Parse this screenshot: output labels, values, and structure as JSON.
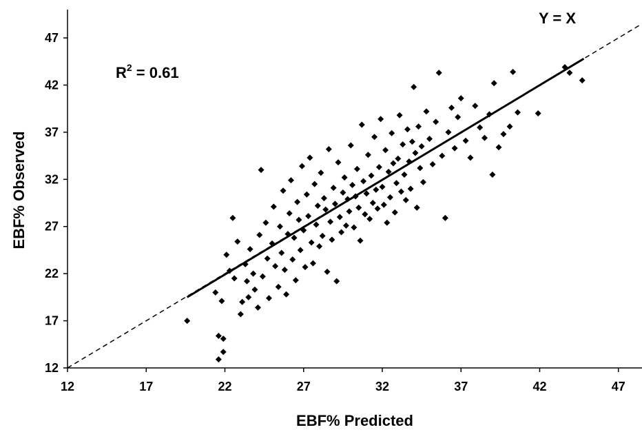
{
  "chart_data": {
    "type": "scatter",
    "xlabel": "EBF% Predicted",
    "ylabel": "EBF% Observed",
    "xlim": [
      12,
      48.5
    ],
    "ylim": [
      12,
      50
    ],
    "xticks": [
      12,
      17,
      22,
      27,
      32,
      37,
      42,
      47
    ],
    "yticks": [
      12,
      17,
      22,
      27,
      32,
      37,
      42,
      47
    ],
    "grid": false,
    "annotations": {
      "r2_base": "R",
      "r2_exp": "2",
      "r2_value": " = 0.61",
      "identity_label": "Y = X"
    },
    "identity_line": {
      "from": [
        12,
        12
      ],
      "to": [
        48.5,
        48.5
      ],
      "style": "dashed"
    },
    "regression_line": {
      "from": [
        19.6,
        19.5
      ],
      "to": [
        44.8,
        44.8
      ],
      "style": "solid"
    },
    "marker_color": "#000000",
    "points": [
      [
        19.6,
        17.0
      ],
      [
        21.6,
        15.4
      ],
      [
        21.9,
        15.1
      ],
      [
        21.6,
        12.9
      ],
      [
        21.9,
        13.7
      ],
      [
        21.4,
        20.0
      ],
      [
        21.8,
        19.1
      ],
      [
        22.1,
        24.0
      ],
      [
        22.3,
        22.3
      ],
      [
        22.5,
        27.9
      ],
      [
        22.6,
        21.5
      ],
      [
        22.8,
        25.4
      ],
      [
        23.0,
        17.7
      ],
      [
        23.1,
        19.0
      ],
      [
        23.3,
        23.0
      ],
      [
        23.4,
        21.2
      ],
      [
        23.5,
        19.5
      ],
      [
        23.6,
        24.6
      ],
      [
        23.8,
        22.0
      ],
      [
        23.9,
        20.3
      ],
      [
        24.1,
        18.4
      ],
      [
        24.2,
        26.1
      ],
      [
        24.3,
        33.0
      ],
      [
        24.4,
        21.7
      ],
      [
        24.6,
        27.4
      ],
      [
        24.7,
        23.6
      ],
      [
        24.8,
        19.4
      ],
      [
        25.0,
        25.2
      ],
      [
        25.1,
        29.1
      ],
      [
        25.2,
        22.8
      ],
      [
        25.4,
        20.6
      ],
      [
        25.5,
        27.0
      ],
      [
        25.6,
        24.2
      ],
      [
        25.7,
        30.8
      ],
      [
        25.8,
        22.4
      ],
      [
        25.9,
        19.8
      ],
      [
        26.0,
        26.2
      ],
      [
        26.1,
        28.4
      ],
      [
        26.2,
        31.9
      ],
      [
        26.3,
        23.5
      ],
      [
        26.4,
        25.8
      ],
      [
        26.5,
        21.3
      ],
      [
        26.6,
        29.6
      ],
      [
        26.7,
        27.7
      ],
      [
        26.8,
        24.5
      ],
      [
        26.9,
        33.4
      ],
      [
        27.0,
        26.6
      ],
      [
        27.1,
        22.7
      ],
      [
        27.2,
        30.4
      ],
      [
        27.3,
        28.1
      ],
      [
        27.4,
        34.3
      ],
      [
        27.5,
        25.3
      ],
      [
        27.6,
        23.1
      ],
      [
        27.7,
        31.5
      ],
      [
        27.8,
        27.2
      ],
      [
        27.9,
        29.2
      ],
      [
        28.0,
        24.9
      ],
      [
        28.1,
        32.7
      ],
      [
        28.2,
        26.0
      ],
      [
        28.3,
        30.0
      ],
      [
        28.4,
        28.8
      ],
      [
        28.5,
        22.2
      ],
      [
        28.6,
        35.2
      ],
      [
        28.7,
        27.5
      ],
      [
        28.8,
        25.6
      ],
      [
        28.9,
        31.1
      ],
      [
        29.0,
        29.4
      ],
      [
        29.1,
        21.2
      ],
      [
        29.2,
        33.8
      ],
      [
        29.3,
        28.0
      ],
      [
        29.4,
        26.4
      ],
      [
        29.5,
        30.6
      ],
      [
        29.6,
        32.2
      ],
      [
        29.7,
        27.1
      ],
      [
        29.8,
        29.9
      ],
      [
        29.9,
        28.6
      ],
      [
        30.0,
        35.6
      ],
      [
        30.1,
        31.4
      ],
      [
        30.2,
        26.9
      ],
      [
        30.3,
        30.2
      ],
      [
        30.4,
        33.1
      ],
      [
        30.5,
        29.0
      ],
      [
        30.6,
        25.5
      ],
      [
        30.7,
        37.8
      ],
      [
        30.8,
        31.8
      ],
      [
        30.9,
        28.3
      ],
      [
        31.0,
        30.5
      ],
      [
        31.1,
        34.6
      ],
      [
        31.2,
        27.8
      ],
      [
        31.3,
        32.4
      ],
      [
        31.4,
        29.5
      ],
      [
        31.5,
        36.5
      ],
      [
        31.6,
        30.9
      ],
      [
        31.7,
        28.9
      ],
      [
        31.8,
        33.3
      ],
      [
        31.9,
        38.4
      ],
      [
        32.0,
        31.2
      ],
      [
        32.1,
        29.3
      ],
      [
        32.2,
        35.1
      ],
      [
        32.3,
        27.4
      ],
      [
        32.4,
        32.8
      ],
      [
        32.5,
        30.1
      ],
      [
        32.6,
        36.9
      ],
      [
        32.7,
        33.7
      ],
      [
        32.8,
        28.5
      ],
      [
        32.9,
        31.6
      ],
      [
        33.0,
        34.2
      ],
      [
        33.1,
        38.8
      ],
      [
        33.2,
        30.7
      ],
      [
        33.3,
        35.7
      ],
      [
        33.4,
        32.5
      ],
      [
        33.5,
        29.8
      ],
      [
        33.6,
        37.3
      ],
      [
        33.7,
        33.9
      ],
      [
        33.8,
        31.0
      ],
      [
        33.9,
        36.0
      ],
      [
        34.0,
        41.8
      ],
      [
        34.1,
        34.8
      ],
      [
        34.2,
        29.0
      ],
      [
        34.3,
        37.6
      ],
      [
        34.4,
        33.2
      ],
      [
        34.5,
        35.5
      ],
      [
        34.6,
        31.7
      ],
      [
        34.8,
        39.2
      ],
      [
        35.0,
        36.3
      ],
      [
        35.2,
        33.6
      ],
      [
        35.4,
        38.1
      ],
      [
        35.6,
        43.3
      ],
      [
        35.8,
        34.5
      ],
      [
        36.0,
        27.9
      ],
      [
        36.2,
        37.0
      ],
      [
        36.4,
        39.6
      ],
      [
        36.6,
        35.3
      ],
      [
        36.8,
        38.6
      ],
      [
        37.0,
        40.6
      ],
      [
        37.3,
        36.1
      ],
      [
        37.6,
        34.3
      ],
      [
        37.9,
        39.8
      ],
      [
        38.2,
        37.5
      ],
      [
        38.5,
        36.4
      ],
      [
        38.8,
        38.9
      ],
      [
        39.0,
        32.5
      ],
      [
        39.1,
        42.2
      ],
      [
        39.4,
        35.4
      ],
      [
        39.7,
        36.8
      ],
      [
        40.1,
        37.6
      ],
      [
        40.3,
        43.4
      ],
      [
        40.6,
        39.1
      ],
      [
        41.9,
        39.0
      ],
      [
        43.6,
        43.9
      ],
      [
        43.9,
        43.3
      ],
      [
        44.7,
        42.5
      ]
    ]
  }
}
